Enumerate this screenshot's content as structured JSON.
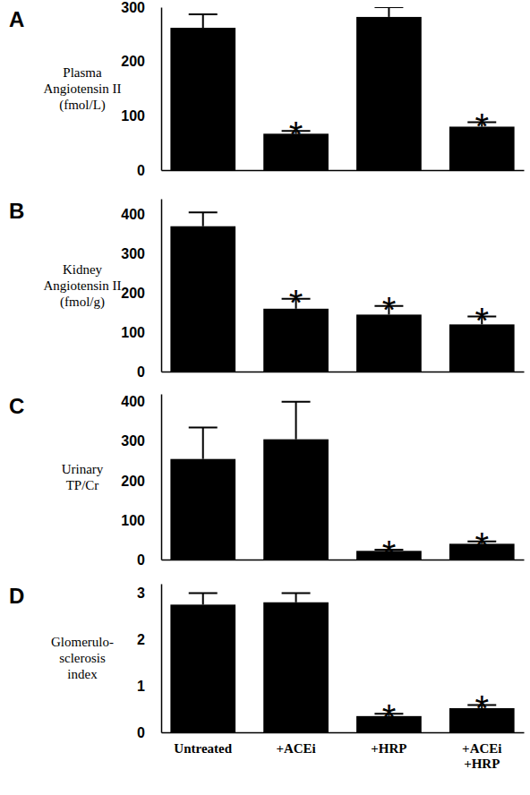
{
  "chart_data": [
    {
      "type": "bar",
      "title": "A",
      "y_label": [
        "Plasma",
        "Angiotensin II",
        "(fmol/L)"
      ],
      "categories": [
        null,
        null,
        null,
        null
      ],
      "values": [
        262,
        67,
        282,
        80
      ],
      "errors": [
        25,
        5,
        18,
        8
      ],
      "annotations": [
        null,
        "*",
        null,
        "*"
      ],
      "color": "#000000",
      "ylim": [
        0,
        300
      ],
      "yticks": [
        0,
        100,
        200,
        300
      ],
      "grid": false
    },
    {
      "type": "bar",
      "title": "B",
      "y_label": [
        "Kidney",
        "Angiotensin II",
        "(fmol/g)"
      ],
      "categories": [
        null,
        null,
        null,
        null
      ],
      "values": [
        370,
        160,
        145,
        120
      ],
      "errors": [
        35,
        25,
        22,
        20
      ],
      "annotations": [
        null,
        "*",
        "*",
        "*"
      ],
      "color": "#000000",
      "ylim": [
        0,
        440
      ],
      "yticks": [
        0,
        100,
        200,
        300,
        400
      ],
      "grid": false
    },
    {
      "type": "bar",
      "title": "C",
      "y_label": [
        "Urinary",
        "TP/Cr"
      ],
      "categories": [
        null,
        null,
        null,
        null
      ],
      "values": [
        255,
        305,
        22,
        40
      ],
      "errors": [
        80,
        95,
        3,
        6
      ],
      "annotations": [
        null,
        null,
        "*",
        "*"
      ],
      "color": "#000000",
      "ylim": [
        0,
        420
      ],
      "yticks": [
        0,
        100,
        200,
        300,
        400
      ],
      "grid": false
    },
    {
      "type": "bar",
      "title": "D",
      "y_label": [
        "Glomerulo-",
        "sclerosis",
        "index"
      ],
      "categories": [
        "Untreated",
        "+ACEi",
        "+HRP",
        "+ACEi\n+HRP"
      ],
      "values": [
        2.75,
        2.8,
        0.35,
        0.52
      ],
      "errors": [
        0.25,
        0.2,
        0.05,
        0.07
      ],
      "annotations": [
        null,
        null,
        "*",
        "*"
      ],
      "color": "#000000",
      "ylim": [
        0,
        3.2
      ],
      "yticks": [
        0,
        1,
        2,
        3
      ],
      "grid": false
    }
  ]
}
